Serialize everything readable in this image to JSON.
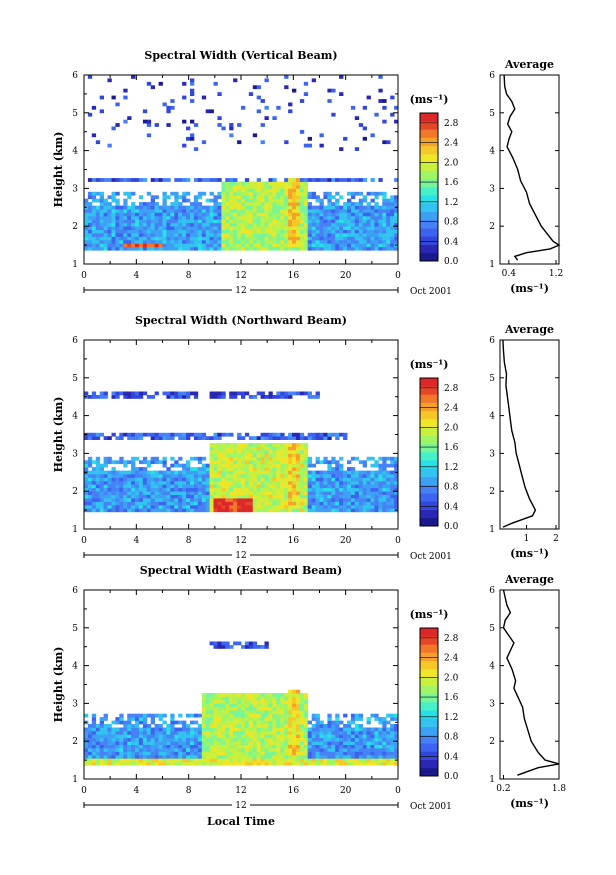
{
  "chart_data": [
    {
      "type": "heatmap",
      "title": "Spectral Width (Vertical Beam)",
      "ylabel": "Height (km)",
      "xlabel": "",
      "x_ticks": [
        "0",
        "4",
        "8",
        "12",
        "16",
        "20",
        "0"
      ],
      "y_ticks": [
        "1",
        "2",
        "3",
        "4",
        "5",
        "6"
      ],
      "xlim": [
        0,
        24
      ],
      "ylim": [
        1,
        6
      ],
      "date_marker": "12",
      "date_label": "Oct 2001",
      "colorbar": {
        "unit": "(ms⁻¹)",
        "ticks": [
          "0.0",
          "0.4",
          "0.8",
          "1.2",
          "1.6",
          "2.0",
          "2.4",
          "2.8"
        ],
        "range": [
          0,
          3.0
        ],
        "colors": [
          "#1a1a8c",
          "#2828b4",
          "#3246dc",
          "#3c64f0",
          "#4682f5",
          "#3ca0f5",
          "#32c3f0",
          "#28e1e6",
          "#46f0c8",
          "#78f596",
          "#a0f564",
          "#c8f03c",
          "#f0e628",
          "#f5c828",
          "#f5a028",
          "#f07828",
          "#e64628",
          "#dc2828"
        ]
      },
      "average_profile": {
        "title": "Average",
        "xlabel": "(ms⁻¹)",
        "x_ticks": [
          "0.4",
          "1.2"
        ],
        "xlim": [
          0.25,
          1.25
        ],
        "ylim": [
          1,
          6
        ],
        "y_ticks": [
          "1",
          "2",
          "3",
          "4",
          "5",
          "6"
        ],
        "points": [
          [
            0.55,
            1.1
          ],
          [
            0.5,
            1.2
          ],
          [
            0.7,
            1.3
          ],
          [
            1.1,
            1.4
          ],
          [
            1.25,
            1.5
          ],
          [
            1.15,
            1.6
          ],
          [
            1.05,
            1.8
          ],
          [
            0.95,
            2.0
          ],
          [
            0.85,
            2.3
          ],
          [
            0.75,
            2.6
          ],
          [
            0.7,
            2.9
          ],
          [
            0.6,
            3.2
          ],
          [
            0.55,
            3.5
          ],
          [
            0.47,
            3.8
          ],
          [
            0.37,
            4.1
          ],
          [
            0.4,
            4.3
          ],
          [
            0.45,
            4.5
          ],
          [
            0.38,
            4.7
          ],
          [
            0.42,
            4.9
          ],
          [
            0.5,
            5.1
          ],
          [
            0.45,
            5.3
          ],
          [
            0.36,
            5.5
          ],
          [
            0.33,
            5.7
          ],
          [
            0.32,
            6.0
          ]
        ]
      },
      "features": [
        {
          "t0": 0,
          "t1": 24,
          "h0": 1.4,
          "h1": 2.9,
          "v": 0.9,
          "note": "main low-level layer"
        },
        {
          "t0": 0,
          "t1": 24,
          "h0": 3.2,
          "h1": 3.3,
          "v": 0.6,
          "note": "thin upper band"
        },
        {
          "t0": 3,
          "t1": 6,
          "h0": 1.45,
          "h1": 1.55,
          "v": 2.8,
          "note": "surface enhancement"
        },
        {
          "t0": 10.5,
          "t1": 17,
          "h0": 1.4,
          "h1": 3.2,
          "v": 1.8,
          "note": "afternoon enhancement"
        },
        {
          "t0": 15.5,
          "t1": 16.5,
          "h0": 1.5,
          "h1": 3.3,
          "v": 2.2,
          "note": "convective column"
        },
        {
          "t0": 0,
          "t1": 24,
          "h0": 4.0,
          "h1": 6.0,
          "v": 0.4,
          "note": "sparse upper echoes"
        }
      ]
    },
    {
      "type": "heatmap",
      "title": "Spectral Width (Northward Beam)",
      "ylabel": "Height (km)",
      "xlabel": "",
      "x_ticks": [
        "0",
        "4",
        "8",
        "12",
        "16",
        "20",
        "0"
      ],
      "y_ticks": [
        "1",
        "2",
        "3",
        "4",
        "5",
        "6"
      ],
      "xlim": [
        0,
        24
      ],
      "ylim": [
        1,
        6
      ],
      "date_marker": "12",
      "date_label": "Oct 2001",
      "colorbar": {
        "unit": "(ms⁻¹)",
        "ticks": [
          "0.0",
          "0.4",
          "0.8",
          "1.2",
          "1.6",
          "2.0",
          "2.4",
          "2.8"
        ],
        "range": [
          0,
          3.0
        ],
        "colors": [
          "#1a1a8c",
          "#2828b4",
          "#3246dc",
          "#3c64f0",
          "#4682f5",
          "#3ca0f5",
          "#32c3f0",
          "#28e1e6",
          "#46f0c8",
          "#78f596",
          "#a0f564",
          "#c8f03c",
          "#f0e628",
          "#f5c828",
          "#f5a028",
          "#f07828",
          "#e64628",
          "#dc2828"
        ]
      },
      "average_profile": {
        "title": "Average",
        "xlabel": "(ms⁻¹)",
        "x_ticks": [
          "1",
          "2"
        ],
        "xlim": [
          0.1,
          2.1
        ],
        "ylim": [
          1,
          6
        ],
        "y_ticks": [
          "1",
          "2",
          "3",
          "4",
          "5",
          "6"
        ],
        "points": [
          [
            0.2,
            1.05
          ],
          [
            0.5,
            1.15
          ],
          [
            1.2,
            1.35
          ],
          [
            1.3,
            1.5
          ],
          [
            1.1,
            1.8
          ],
          [
            0.95,
            2.1
          ],
          [
            0.85,
            2.4
          ],
          [
            0.75,
            2.7
          ],
          [
            0.65,
            3.0
          ],
          [
            0.6,
            3.3
          ],
          [
            0.5,
            3.6
          ],
          [
            0.45,
            3.9
          ],
          [
            0.4,
            4.2
          ],
          [
            0.35,
            4.5
          ],
          [
            0.3,
            4.8
          ],
          [
            0.32,
            5.1
          ],
          [
            0.25,
            5.4
          ],
          [
            0.22,
            5.7
          ],
          [
            0.2,
            6.0
          ]
        ]
      },
      "features": [
        {
          "t0": 0,
          "t1": 24,
          "h0": 1.5,
          "h1": 2.9,
          "v": 0.9,
          "note": "main low-level layer"
        },
        {
          "t0": 0,
          "t1": 20,
          "h0": 3.4,
          "h1": 3.5,
          "v": 0.6,
          "note": "upper band"
        },
        {
          "t0": 0,
          "t1": 18,
          "h0": 4.5,
          "h1": 4.6,
          "v": 0.5,
          "note": "upper band"
        },
        {
          "t0": 9.5,
          "t1": 17,
          "h0": 1.5,
          "h1": 3.3,
          "v": 1.9,
          "note": "afternoon enhancement"
        },
        {
          "t0": 10,
          "t1": 13,
          "h0": 1.5,
          "h1": 1.8,
          "v": 2.9,
          "note": "strong surface enhancement"
        },
        {
          "t0": 15.5,
          "t1": 16.5,
          "h0": 1.6,
          "h1": 3.3,
          "v": 2.2,
          "note": "convective column"
        }
      ]
    },
    {
      "type": "heatmap",
      "title": "Spectral Width (Eastward Beam)",
      "ylabel": "Height (km)",
      "xlabel": "Local Time",
      "x_ticks": [
        "0",
        "4",
        "8",
        "12",
        "16",
        "20",
        "0"
      ],
      "y_ticks": [
        "1",
        "2",
        "3",
        "4",
        "5",
        "6"
      ],
      "xlim": [
        0,
        24
      ],
      "ylim": [
        1,
        6
      ],
      "date_marker": "12",
      "date_label": "Oct 2001",
      "colorbar": {
        "unit": "(ms⁻¹)",
        "ticks": [
          "0.0",
          "0.4",
          "0.8",
          "1.2",
          "1.6",
          "2.0",
          "2.4",
          "2.8"
        ],
        "range": [
          0,
          3.0
        ],
        "colors": [
          "#1a1a8c",
          "#2828b4",
          "#3246dc",
          "#3c64f0",
          "#4682f5",
          "#3ca0f5",
          "#32c3f0",
          "#28e1e6",
          "#46f0c8",
          "#78f596",
          "#a0f564",
          "#c8f03c",
          "#f0e628",
          "#f5c828",
          "#f5a028",
          "#f07828",
          "#e64628",
          "#dc2828"
        ]
      },
      "average_profile": {
        "title": "Average",
        "xlabel": "(ms⁻¹)",
        "x_ticks": [
          "0.2",
          "1.8"
        ],
        "xlim": [
          0.1,
          1.8
        ],
        "ylim": [
          1,
          6
        ],
        "y_ticks": [
          "1",
          "2",
          "3",
          "4",
          "5",
          "6"
        ],
        "points": [
          [
            0.6,
            1.1
          ],
          [
            1.2,
            1.3
          ],
          [
            1.8,
            1.4
          ],
          [
            1.4,
            1.5
          ],
          [
            1.2,
            1.7
          ],
          [
            1.0,
            2.0
          ],
          [
            0.9,
            2.3
          ],
          [
            0.8,
            2.6
          ],
          [
            0.75,
            2.9
          ],
          [
            0.6,
            3.2
          ],
          [
            0.5,
            3.4
          ],
          [
            0.55,
            3.6
          ],
          [
            0.45,
            3.9
          ],
          [
            0.3,
            4.2
          ],
          [
            0.4,
            4.4
          ],
          [
            0.5,
            4.6
          ],
          [
            0.35,
            4.8
          ],
          [
            0.2,
            5.0
          ],
          [
            0.25,
            5.2
          ],
          [
            0.4,
            5.4
          ],
          [
            0.3,
            5.6
          ],
          [
            0.25,
            5.8
          ],
          [
            0.2,
            6.0
          ]
        ]
      },
      "features": [
        {
          "t0": 0,
          "t1": 24,
          "h0": 1.5,
          "h1": 2.7,
          "v": 0.9,
          "note": "main low-level layer"
        },
        {
          "t0": 0,
          "t1": 24,
          "h0": 1.4,
          "h1": 1.5,
          "v": 2.0,
          "note": "surface enhancement"
        },
        {
          "t0": 9,
          "t1": 17,
          "h0": 1.4,
          "h1": 3.3,
          "v": 1.8,
          "note": "afternoon enhancement"
        },
        {
          "t0": 15.5,
          "t1": 16.5,
          "h0": 1.6,
          "h1": 3.4,
          "v": 2.1,
          "note": "convective column"
        },
        {
          "t0": 9.5,
          "t1": 14,
          "h0": 4.5,
          "h1": 4.6,
          "v": 0.5,
          "note": "upper band"
        }
      ]
    }
  ]
}
